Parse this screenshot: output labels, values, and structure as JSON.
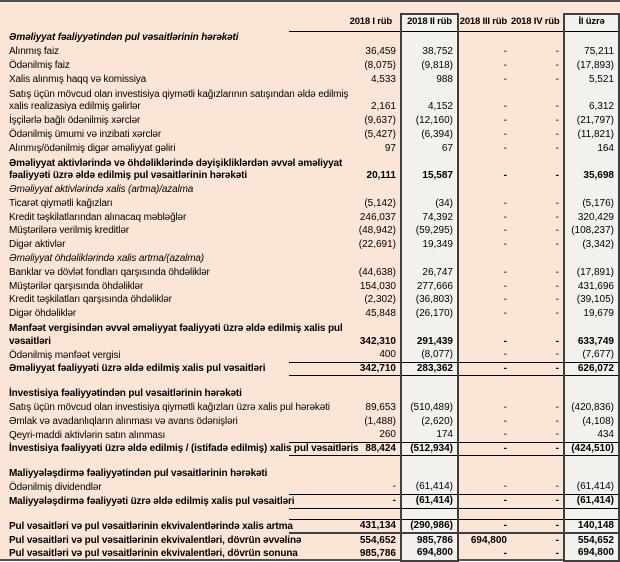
{
  "colors": {
    "sheet_background": "#fbe5d6",
    "highlight_column_background": "#f2f1ee",
    "highlight_column_border": "#3f3f3f",
    "rule_line": "#000000",
    "frame_line": "#515151",
    "text": "#000000"
  },
  "table": {
    "columns": [
      "",
      "2018 I rüb",
      "2018 II rüb",
      "2018 III rüb",
      "2018 IV rüb",
      "İl üzrə"
    ],
    "rows": [
      {
        "style": "section-bi",
        "label": "Əməliyyat fəaliyyətindən pul vəsaitlərinin hərəkəti",
        "values": [
          "",
          "",
          "",
          "",
          ""
        ]
      },
      {
        "style": "plain",
        "label": "Alınmış faiz",
        "values": [
          "36,459",
          "38,752",
          "-",
          "-",
          "75,211"
        ]
      },
      {
        "style": "plain",
        "label": "Ödənilmiş faiz",
        "values": [
          "(8,075)",
          "(9,818)",
          "-",
          "-",
          "(17,893)"
        ]
      },
      {
        "style": "plain",
        "label": "Xalis alınmış haqq və komissiya",
        "values": [
          "4,533",
          "988",
          "-",
          "-",
          "5,521"
        ]
      },
      {
        "style": "plain wrap2",
        "label": "Satış üçün mövcud olan investisiya qiymətli kağızlarının satışından əldə edilmiş\nxalis realizasiya edilmiş gəlirlər",
        "values": [
          "2,161",
          "4,152",
          "-",
          "-",
          "6,312"
        ]
      },
      {
        "style": "plain",
        "label": "İşçilərlə bağlı ödənilmiş xərclər",
        "values": [
          "(9,637)",
          "(12,160)",
          "-",
          "-",
          "(21,797)"
        ]
      },
      {
        "style": "plain",
        "label": "Ödənilmiş ümumi və inzibati xərclər",
        "values": [
          "(5,427)",
          "(6,394)",
          "-",
          "-",
          "(11,821)"
        ]
      },
      {
        "style": "plain",
        "label": "Alınmış/ödənilmiş digər əməliyyat gəliri",
        "values": [
          "97",
          "67",
          "-",
          "-",
          "164"
        ]
      },
      {
        "style": "subtotal wrap2",
        "label": "Əməliyyat aktivlərində və öhdəliklərində dəyişikliklərdən əvvəl əməliyyat\nfəaliyyəti üzrə əldə edilmiş pul vəsaitlərinin hərəkəti",
        "values": [
          "20,111",
          "15,587",
          "-",
          "-",
          "35,698"
        ]
      },
      {
        "style": "italic",
        "label": "Əməliyyat aktivlərində xalis (artma)/azalma",
        "values": [
          "",
          "",
          "",
          "",
          ""
        ]
      },
      {
        "style": "plain",
        "label": "Ticarət qiymətli kağızları",
        "values": [
          "(5,142)",
          "(34)",
          "-",
          "-",
          "(5,176)"
        ]
      },
      {
        "style": "plain",
        "label": "Kredit təşkilatlarından alınacaq məbləğlər",
        "values": [
          "246,037",
          "74,392",
          "-",
          "-",
          "320,429"
        ]
      },
      {
        "style": "plain",
        "label": "Müştərilərə verilmiş kreditlər",
        "values": [
          "(48,942)",
          "(59,295)",
          "-",
          "-",
          "(108,237)"
        ]
      },
      {
        "style": "plain",
        "label": "Digər aktivlər",
        "values": [
          "(22,691)",
          "19,349",
          "-",
          "-",
          "(3,342)"
        ]
      },
      {
        "style": "italic",
        "label": "Əməliyyat öhdəliklərində xalis artma/(azalma)",
        "values": [
          "",
          "",
          "",
          "",
          ""
        ]
      },
      {
        "style": "plain",
        "label": "Banklar və dövlət fondları qarşısında öhdəliklər",
        "values": [
          "(44,638)",
          "26,747",
          "-",
          "-",
          "(17,891)"
        ]
      },
      {
        "style": "plain",
        "label": "Müştərilər qarşısında öhdəliklər",
        "values": [
          "154,030",
          "277,666",
          "-",
          "-",
          "431,696"
        ]
      },
      {
        "style": "plain",
        "label": "Kredit təşkilatları qarşısında öhdəliklər",
        "values": [
          "(2,302)",
          "(36,803)",
          "-",
          "-",
          "(39,105)"
        ]
      },
      {
        "style": "plain",
        "label": "Digər öhdəliklər",
        "values": [
          "45,848",
          "(26,170)",
          "-",
          "-",
          "19,679"
        ]
      },
      {
        "style": "subtotal wrap2",
        "label": "Mənfəət vergisindən əvvəl əməliyyat fəaliyyəti üzrə əldə edilmiş xalis pul\nvəsaitləri",
        "values": [
          "342,310",
          "291,439",
          "-",
          "-",
          "633,749"
        ]
      },
      {
        "style": "plain",
        "label": "Ödənilmiş mənfəət vergisi",
        "values": [
          "400",
          "(8,077)",
          "-",
          "-",
          "(7,677)"
        ]
      },
      {
        "style": "total",
        "label": "Əməliyyat fəaliyyəti üzrə əldə edilmiş xalis pul vəsaitləri",
        "values": [
          "342,710",
          "283,362",
          "-",
          "-",
          "626,072"
        ]
      },
      {
        "style": "blank",
        "label": "",
        "values": [
          "",
          "",
          "",
          "",
          ""
        ]
      },
      {
        "style": "bold",
        "label": "İnvestisiya fəaliyyətindən pul vəsaitlərinin hərəkəti",
        "values": [
          "",
          "",
          "",
          "",
          ""
        ]
      },
      {
        "style": "plain",
        "label": "Satış üçün mövcud olan investisiya qiymətli kağızları üzrə xalis pul hərəkəti",
        "values": [
          "89,653",
          "(510,489)",
          "-",
          "-",
          "(420,836)"
        ]
      },
      {
        "style": "plain",
        "label": "Əmlak və avadanlıqların alınması və avans ödənişləri",
        "values": [
          "(1,488)",
          "(2,620)",
          "-",
          "-",
          "(4,108)"
        ]
      },
      {
        "style": "plain",
        "label": "Qeyri-maddi aktivlərin satın alınması",
        "values": [
          "260",
          "174",
          "-",
          "-",
          "434"
        ]
      },
      {
        "style": "total",
        "label": "İnvestisiya fəaliyyəti üzrə əldə edilmiş / (istifadə edilmiş) xalis pul vəsaitləris",
        "values": [
          "88,424",
          "(512,934)",
          "-",
          "-",
          "(424,510)"
        ]
      },
      {
        "style": "blank",
        "label": "",
        "values": [
          "",
          "",
          "",
          "",
          ""
        ]
      },
      {
        "style": "bold",
        "label": "Maliyyələşdirmə fəaliyyətindən pul vəsaitlərinin hərəkəti",
        "values": [
          "",
          "",
          "",
          "",
          ""
        ]
      },
      {
        "style": "plain",
        "label": "Ödənilmiş dividendlər",
        "values": [
          "-",
          "(61,414)",
          "-",
          "-",
          "(61,414)"
        ]
      },
      {
        "style": "total",
        "label": "Maliyyələşdirmə fəaliyyəti üzrə əldə edilmiş xalis pul vəsaitləri",
        "values": [
          "-",
          "(61,414)",
          "-",
          "-",
          "(61,414)"
        ]
      },
      {
        "style": "blank",
        "label": "",
        "values": [
          "",
          "",
          "",
          "",
          ""
        ]
      },
      {
        "style": "grand",
        "label": "Pul vəsaitləri və pul vəsaitlərinin ekvivalentlərində xalis artma",
        "values": [
          "431,134",
          "(290,986)",
          "-",
          "-",
          "140,148"
        ]
      },
      {
        "style": "boldrow",
        "label": "Pul vəsaitləri və pul vəsaitlərinin ekvivalentləri, dövrün əvvəlinə",
        "values": [
          "554,652",
          "985,786",
          "694,800",
          "-",
          "554,652"
        ]
      },
      {
        "style": "boldrow",
        "label": "Pul vəsaitləri və pul vəsaitlərinin ekvivalentləri, dövrün sonuna",
        "values": [
          "985,786",
          "694,800",
          "-",
          "-",
          "694,800"
        ]
      }
    ]
  }
}
